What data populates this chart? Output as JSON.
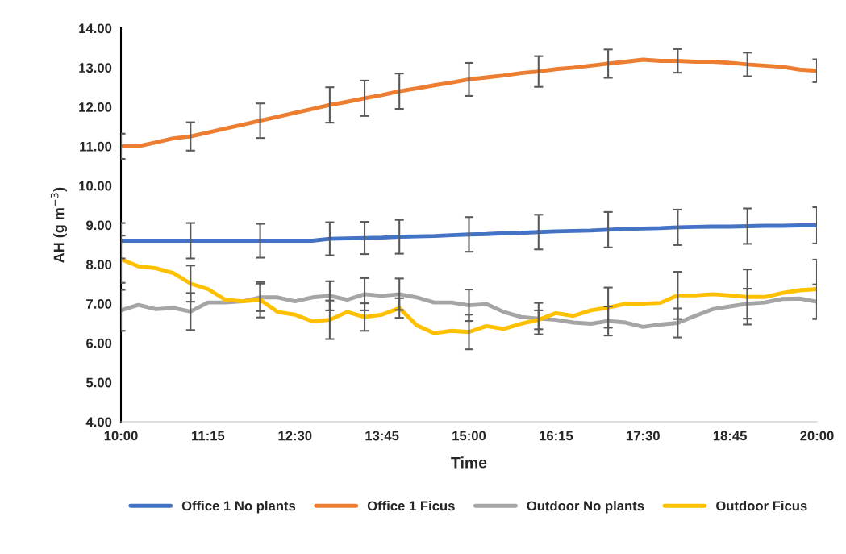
{
  "chart_data": {
    "type": "line",
    "xlabel": "Time",
    "ylabel": "AH (g m$^{−3}$)",
    "x": [
      10,
      10.25,
      10.5,
      10.75,
      11,
      11.25,
      11.5,
      11.75,
      12,
      12.25,
      12.5,
      12.75,
      13,
      13.25,
      13.5,
      13.75,
      14,
      14.25,
      14.5,
      14.75,
      15,
      15.25,
      15.5,
      15.75,
      16,
      16.25,
      16.5,
      16.75,
      17,
      17.25,
      17.5,
      17.75,
      18,
      18.25,
      18.5,
      18.75,
      19,
      19.25,
      19.5,
      19.75,
      20
    ],
    "series": [
      {
        "name": "Office 1 No plants",
        "color": "#4472c4",
        "values": [
          8.6,
          8.6,
          8.6,
          8.6,
          8.6,
          8.6,
          8.6,
          8.6,
          8.6,
          8.6,
          8.6,
          8.6,
          8.65,
          8.66,
          8.67,
          8.68,
          8.7,
          8.71,
          8.72,
          8.74,
          8.76,
          8.77,
          8.79,
          8.8,
          8.82,
          8.84,
          8.85,
          8.86,
          8.88,
          8.9,
          8.91,
          8.92,
          8.94,
          8.95,
          8.96,
          8.96,
          8.97,
          8.98,
          8.98,
          8.99,
          8.99
        ],
        "errors": [
          0.45,
          null,
          null,
          null,
          0.45,
          null,
          null,
          null,
          0.43,
          null,
          null,
          null,
          0.42,
          null,
          0.41,
          null,
          0.43,
          null,
          null,
          null,
          0.44,
          null,
          null,
          null,
          0.44,
          null,
          null,
          null,
          0.45,
          null,
          null,
          null,
          0.45,
          null,
          null,
          null,
          0.45,
          null,
          null,
          null,
          0.46
        ]
      },
      {
        "name": "Office 1 Ficus",
        "color": "#ed7d31",
        "values": [
          11.0,
          11.0,
          11.1,
          11.2,
          11.25,
          11.35,
          11.45,
          11.55,
          11.65,
          11.75,
          11.85,
          11.95,
          12.05,
          12.13,
          12.22,
          12.3,
          12.4,
          12.47,
          12.55,
          12.62,
          12.7,
          12.75,
          12.8,
          12.86,
          12.9,
          12.96,
          13.0,
          13.05,
          13.1,
          13.15,
          13.2,
          13.17,
          13.17,
          13.15,
          13.15,
          13.12,
          13.08,
          13.05,
          13.02,
          12.95,
          12.92
        ],
        "errors": [
          0.32,
          null,
          null,
          null,
          0.36,
          null,
          null,
          null,
          0.44,
          null,
          null,
          null,
          0.45,
          null,
          0.45,
          null,
          0.45,
          null,
          null,
          null,
          0.42,
          null,
          null,
          null,
          0.39,
          null,
          null,
          null,
          0.36,
          null,
          null,
          null,
          0.3,
          null,
          null,
          null,
          0.3,
          null,
          null,
          null,
          0.29
        ]
      },
      {
        "name": "Outdoor No plants",
        "color": "#a5a5a5",
        "values": [
          6.83,
          6.97,
          6.86,
          6.89,
          6.8,
          7.03,
          7.03,
          7.06,
          7.16,
          7.16,
          7.06,
          7.16,
          7.2,
          7.1,
          7.24,
          7.2,
          7.24,
          7.16,
          7.03,
          7.03,
          6.96,
          6.99,
          6.79,
          6.66,
          6.62,
          6.59,
          6.52,
          6.49,
          6.56,
          6.52,
          6.41,
          6.47,
          6.51,
          6.69,
          6.86,
          6.93,
          7.0,
          7.03,
          7.12,
          7.13,
          7.05
        ],
        "errors": [
          0.52,
          null,
          null,
          null,
          0.47,
          null,
          null,
          null,
          0.35,
          null,
          null,
          null,
          0.37,
          null,
          0.41,
          null,
          0.4,
          null,
          null,
          null,
          0.4,
          null,
          null,
          null,
          0.4,
          null,
          null,
          null,
          0.37,
          null,
          null,
          null,
          0.37,
          null,
          null,
          null,
          0.38,
          null,
          null,
          null,
          0.44
        ]
      },
      {
        "name": "Outdoor Ficus",
        "color": "#ffc000",
        "values": [
          8.13,
          7.95,
          7.9,
          7.78,
          7.51,
          7.37,
          7.1,
          7.06,
          7.1,
          6.79,
          6.72,
          6.55,
          6.59,
          6.79,
          6.66,
          6.72,
          6.89,
          6.45,
          6.25,
          6.31,
          6.28,
          6.43,
          6.36,
          6.49,
          6.59,
          6.76,
          6.69,
          6.83,
          6.9,
          7.0,
          7.0,
          7.02,
          7.21,
          7.21,
          7.24,
          7.21,
          7.17,
          7.17,
          7.27,
          7.34,
          7.37
        ],
        "errors": [
          0.6,
          null,
          null,
          null,
          0.46,
          null,
          null,
          null,
          0.45,
          null,
          null,
          null,
          0.49,
          null,
          0.35,
          null,
          0.25,
          null,
          null,
          null,
          0.44,
          null,
          null,
          null,
          0.24,
          null,
          null,
          null,
          0.51,
          null,
          null,
          null,
          0.6,
          null,
          null,
          null,
          0.7,
          null,
          null,
          null,
          0.75
        ]
      }
    ],
    "xlim": [
      10,
      20
    ],
    "xticks": [
      {
        "value": 10,
        "label": "10:00"
      },
      {
        "value": 11.25,
        "label": "11:15"
      },
      {
        "value": 12.5,
        "label": "12:30"
      },
      {
        "value": 13.75,
        "label": "13:45"
      },
      {
        "value": 15,
        "label": "15:00"
      },
      {
        "value": 16.25,
        "label": "16:15"
      },
      {
        "value": 17.5,
        "label": "17:30"
      },
      {
        "value": 18.75,
        "label": "18:45"
      },
      {
        "value": 20,
        "label": "20:00"
      }
    ],
    "ylim": [
      4,
      14
    ],
    "yticks": [
      {
        "value": 4,
        "label": "4.00"
      },
      {
        "value": 5,
        "label": "5.00"
      },
      {
        "value": 6,
        "label": "6.00"
      },
      {
        "value": 7,
        "label": "7.00"
      },
      {
        "value": 8,
        "label": "8.00"
      },
      {
        "value": 9,
        "label": "9.00"
      },
      {
        "value": 10,
        "label": "10.00"
      },
      {
        "value": 11,
        "label": "11.00"
      },
      {
        "value": 12,
        "label": "12.00"
      },
      {
        "value": 13,
        "label": "13.00"
      },
      {
        "value": 14,
        "label": "14.00"
      }
    ],
    "grid": false,
    "legend": "bottom",
    "marker": "none",
    "line_style": "solid"
  }
}
